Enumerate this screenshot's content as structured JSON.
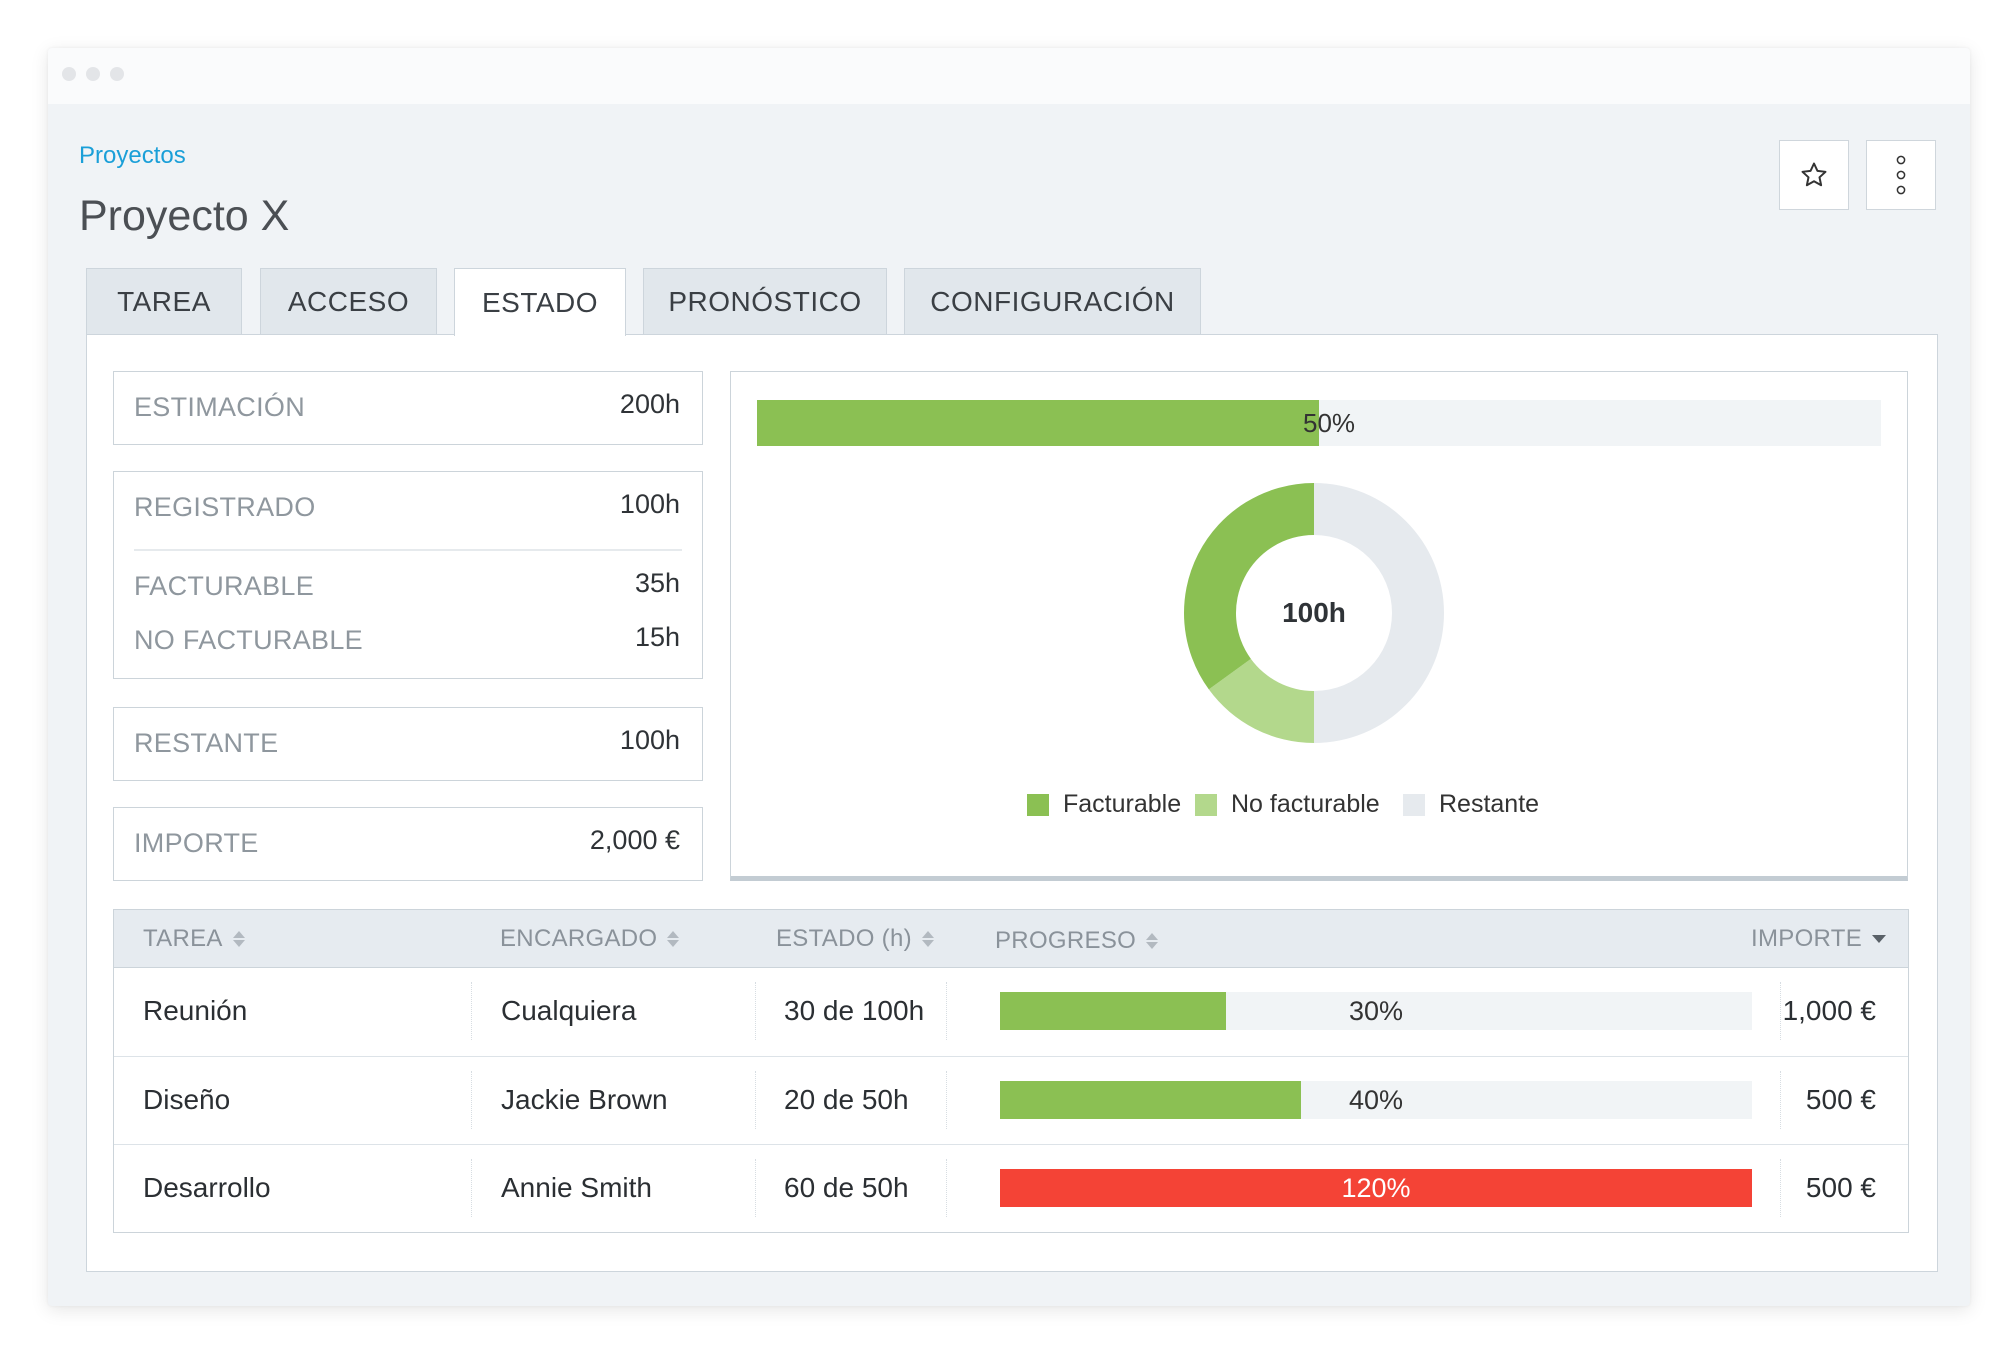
{
  "breadcrumb": "Proyectos",
  "title": "Proyecto X",
  "tabs": [
    {
      "label": "TAREA"
    },
    {
      "label": "ACCESO"
    },
    {
      "label": "ESTADO",
      "active": true
    },
    {
      "label": "PRONÓSTICO"
    },
    {
      "label": "CONFIGURACIÓN"
    }
  ],
  "toolbar": {
    "star_icon": "star-icon",
    "more_icon": "vertical-dots-icon"
  },
  "stats": {
    "estimacion": {
      "label": "ESTIMACIÓN",
      "value": "200h"
    },
    "registrado": {
      "label": "REGISTRADO",
      "value": "100h"
    },
    "facturable": {
      "label": "FACTURABLE",
      "value": "35h"
    },
    "no_facturable": {
      "label": "NO FACTURABLE",
      "value": "15h"
    },
    "restante": {
      "label": "RESTANTE",
      "value": "100h"
    },
    "importe": {
      "label": "IMPORTE",
      "value": "2,000 €"
    }
  },
  "overall_progress": {
    "label": "50%",
    "fraction": 0.5
  },
  "chart_data": {
    "type": "pie",
    "center_label": "100h",
    "series": [
      {
        "name": "Facturable",
        "value": 35,
        "color": "#8bc053"
      },
      {
        "name": "No facturable",
        "value": 15,
        "color": "#b3d88c"
      },
      {
        "name": "Restante",
        "value": 50,
        "color": "#e6eaee"
      }
    ]
  },
  "table": {
    "headers": {
      "tarea": "TAREA",
      "encargado": "ENCARGADO",
      "estado": "ESTADO (h)",
      "progreso": "PROGRESO",
      "importe": "IMPORTE"
    },
    "rows": [
      {
        "tarea": "Reunión",
        "encargado": "Cualquiera",
        "estado": "30 de 100h",
        "progreso_label": "30%",
        "progreso": 0.3,
        "importe": "1,000 €"
      },
      {
        "tarea": "Diseño",
        "encargado": "Jackie Brown",
        "estado": "20 de 50h",
        "progreso_label": "40%",
        "progreso": 0.4,
        "importe": "500 €"
      },
      {
        "tarea": "Desarrollo",
        "encargado": "Annie Smith",
        "estado": "60 de 50h",
        "progreso_label": "120%",
        "progreso": 1.2,
        "importe": "500 €"
      }
    ]
  },
  "colors": {
    "accent": "#1a9fd8",
    "progress_ok": "#8bc053",
    "progress_over": "#f44336",
    "no_facturable": "#b3d88c",
    "restante": "#e6eaee"
  }
}
